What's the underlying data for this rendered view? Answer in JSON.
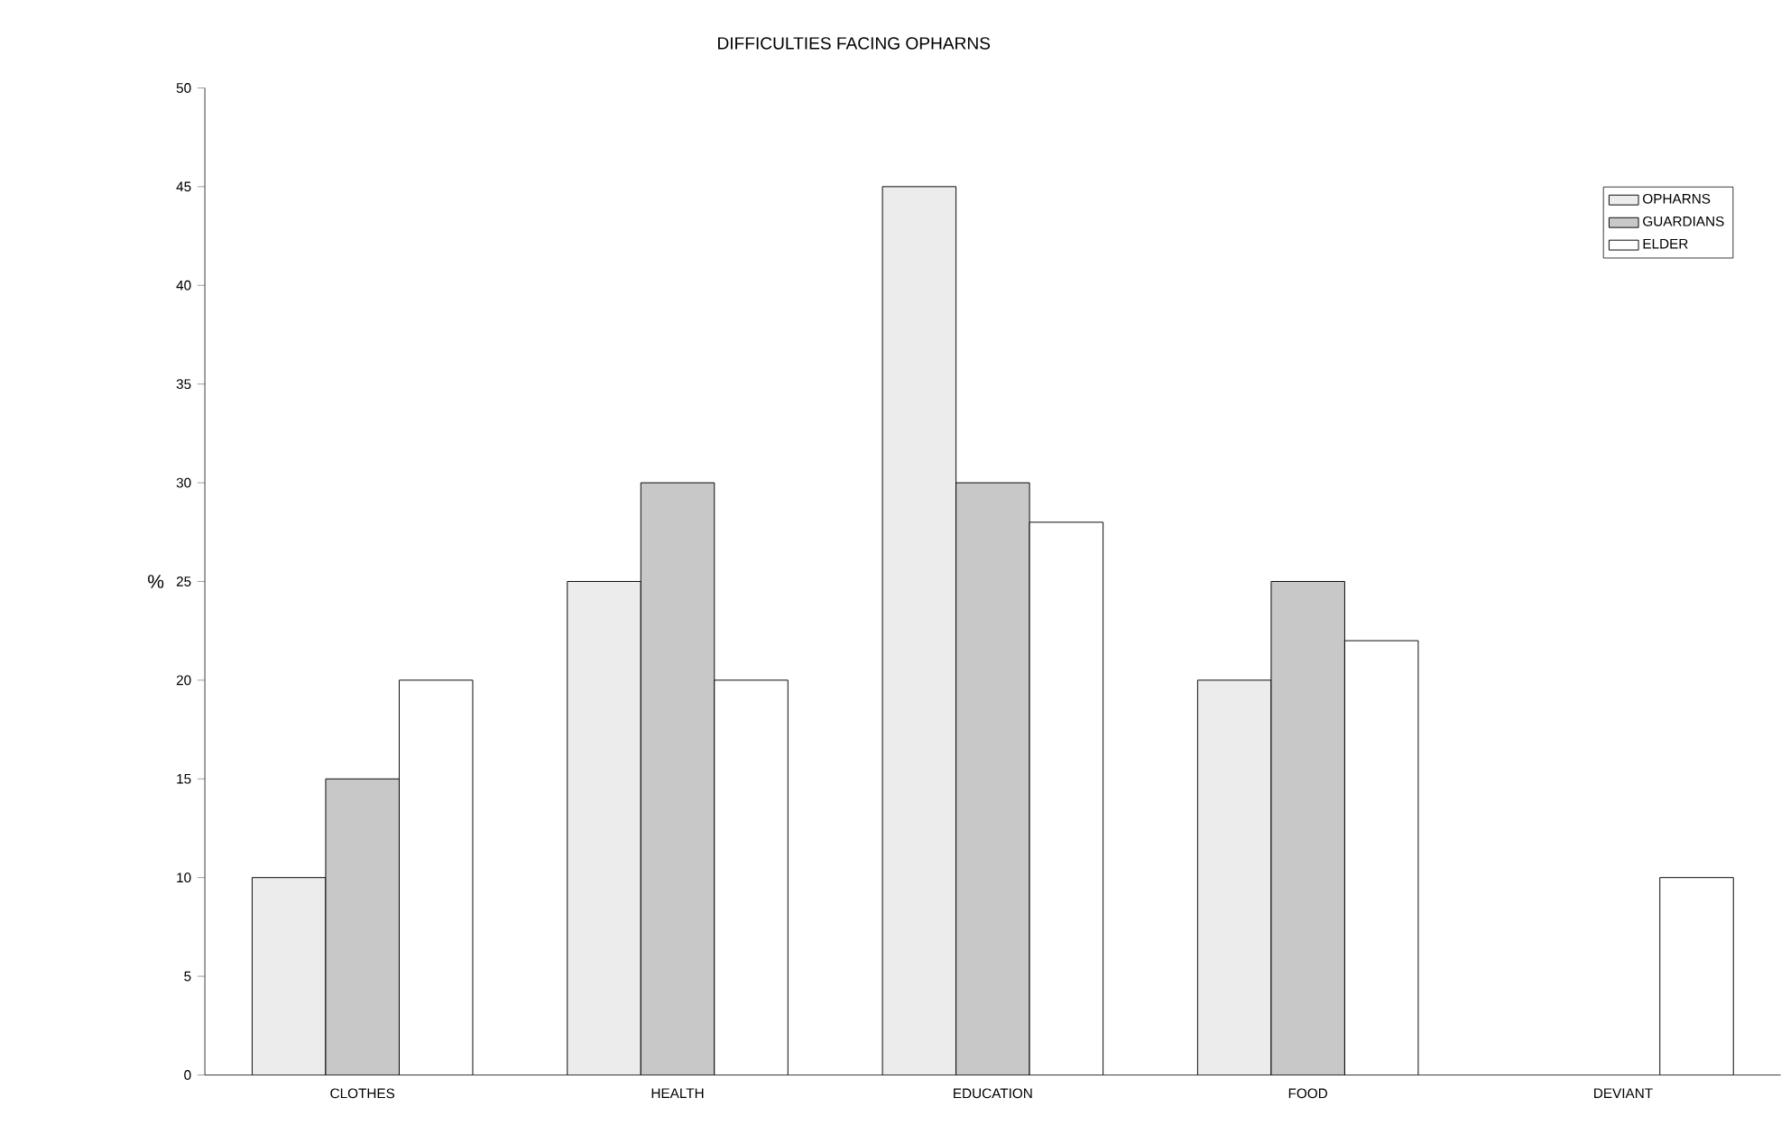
{
  "chart_data": {
    "type": "bar",
    "title": "DIFFICULTIES FACING OPHARNS",
    "ylabel": "%",
    "categories": [
      "CLOTHES",
      "HEALTH",
      "EDUCATION",
      "FOOD",
      "DEVIANT"
    ],
    "series": [
      {
        "name": "OPHARNS",
        "color": "#ececec",
        "values": [
          10,
          25,
          45,
          20,
          null
        ]
      },
      {
        "name": "GUARDIANS",
        "color": "#c8c8c8",
        "values": [
          15,
          30,
          30,
          25,
          null
        ]
      },
      {
        "name": "ELDER",
        "color": "#ffffff",
        "values": [
          20,
          20,
          28,
          22,
          10
        ]
      }
    ],
    "ylim": [
      0,
      50
    ],
    "yticks": [
      0,
      5,
      10,
      15,
      20,
      25,
      30,
      35,
      40,
      45,
      50
    ],
    "legend": "top right",
    "grid": false
  }
}
